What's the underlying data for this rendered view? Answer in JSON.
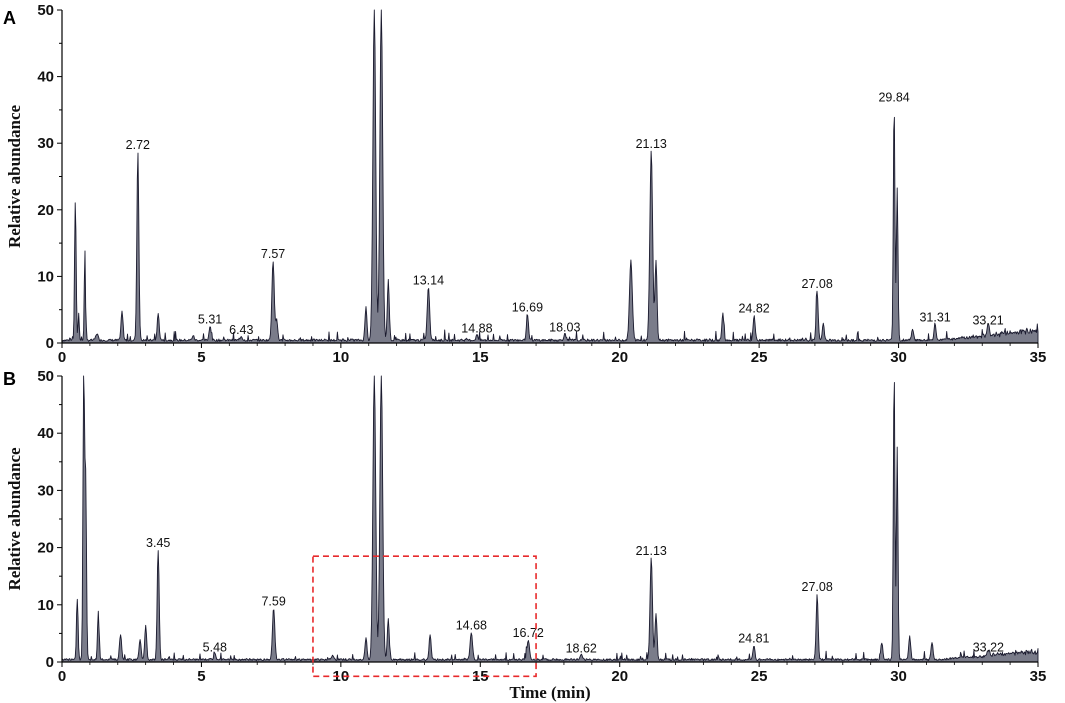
{
  "chart_data": [
    {
      "type": "line",
      "panel_label": "A",
      "ylabel": "Relative abundance",
      "xlabel": "",
      "xlim": [
        0,
        35
      ],
      "ylim": [
        0,
        50
      ],
      "x_ticks": [
        "0",
        "5",
        "10",
        "15",
        "20",
        "25",
        "30",
        "35"
      ],
      "y_ticks": [
        "0",
        "10",
        "20",
        "30",
        "40",
        "50"
      ],
      "series": [
        {
          "peaks": [
            {
              "x": 0.48,
              "y": 21.0,
              "w": 0.04
            },
            {
              "x": 0.6,
              "y": 4.0,
              "w": 0.03
            },
            {
              "x": 0.82,
              "y": 13.7,
              "w": 0.03
            },
            {
              "x": 1.25,
              "y": 1.0,
              "w": 0.06
            },
            {
              "x": 2.15,
              "y": 4.2,
              "w": 0.05
            },
            {
              "x": 2.72,
              "y": 28.4,
              "w": 0.05
            },
            {
              "x": 3.45,
              "y": 4.0,
              "w": 0.05
            },
            {
              "x": 4.7,
              "y": 0.7,
              "w": 0.05
            },
            {
              "x": 5.31,
              "y": 2.2,
              "w": 0.05
            },
            {
              "x": 6.43,
              "y": 0.6,
              "w": 0.05
            },
            {
              "x": 7.57,
              "y": 12.0,
              "w": 0.06
            },
            {
              "x": 7.7,
              "y": 3.0,
              "w": 0.05
            },
            {
              "x": 10.9,
              "y": 5.0,
              "w": 0.05
            },
            {
              "x": 11.2,
              "y": 50.0,
              "w": 0.07
            },
            {
              "x": 11.45,
              "y": 50.0,
              "w": 0.07
            },
            {
              "x": 11.7,
              "y": 9.0,
              "w": 0.05
            },
            {
              "x": 13.14,
              "y": 8.0,
              "w": 0.06
            },
            {
              "x": 14.88,
              "y": 0.8,
              "w": 0.05
            },
            {
              "x": 16.69,
              "y": 4.0,
              "w": 0.05
            },
            {
              "x": 18.03,
              "y": 1.0,
              "w": 0.05
            },
            {
              "x": 20.4,
              "y": 12.0,
              "w": 0.07
            },
            {
              "x": 21.13,
              "y": 28.5,
              "w": 0.07
            },
            {
              "x": 21.3,
              "y": 12.0,
              "w": 0.05
            },
            {
              "x": 23.7,
              "y": 4.0,
              "w": 0.05
            },
            {
              "x": 24.82,
              "y": 3.8,
              "w": 0.05
            },
            {
              "x": 27.08,
              "y": 7.5,
              "w": 0.05
            },
            {
              "x": 27.3,
              "y": 2.5,
              "w": 0.05
            },
            {
              "x": 29.84,
              "y": 35.5,
              "w": 0.04
            },
            {
              "x": 29.95,
              "y": 23.0,
              "w": 0.04
            },
            {
              "x": 30.5,
              "y": 1.8,
              "w": 0.05
            },
            {
              "x": 31.31,
              "y": 2.5,
              "w": 0.05
            },
            {
              "x": 33.21,
              "y": 2.0,
              "w": 0.05
            }
          ]
        }
      ],
      "peak_labels": [
        {
          "text": "2.72",
          "x": 2.72,
          "y": 28.4
        },
        {
          "text": "5.31",
          "x": 5.31,
          "y": 2.2
        },
        {
          "text": "6.43",
          "x": 6.43,
          "y": 0.6
        },
        {
          "text": "7.57",
          "x": 7.57,
          "y": 12.0
        },
        {
          "text": "13.14",
          "x": 13.14,
          "y": 8.0
        },
        {
          "text": "14.88",
          "x": 14.88,
          "y": 0.8
        },
        {
          "text": "16.69",
          "x": 16.69,
          "y": 4.0
        },
        {
          "text": "18.03",
          "x": 18.03,
          "y": 1.0
        },
        {
          "text": "21.13",
          "x": 21.13,
          "y": 28.5
        },
        {
          "text": "24.82",
          "x": 24.82,
          "y": 3.8
        },
        {
          "text": "27.08",
          "x": 27.08,
          "y": 7.5
        },
        {
          "text": "29.84",
          "x": 29.84,
          "y": 35.5
        },
        {
          "text": "31.31",
          "x": 31.31,
          "y": 2.5
        },
        {
          "text": "33.21",
          "x": 33.21,
          "y": 2.0
        }
      ],
      "grid": false
    },
    {
      "type": "line",
      "panel_label": "B",
      "ylabel": "Relative abundance",
      "xlabel": "Time (min)",
      "xlim": [
        0,
        35
      ],
      "ylim": [
        0,
        50
      ],
      "x_ticks": [
        "0",
        "5",
        "10",
        "15",
        "20",
        "25",
        "30",
        "35"
      ],
      "y_ticks": [
        "0",
        "10",
        "20",
        "30",
        "40",
        "50"
      ],
      "series": [
        {
          "peaks": [
            {
              "x": 0.55,
              "y": 10.7,
              "w": 0.04
            },
            {
              "x": 0.78,
              "y": 50.0,
              "w": 0.04
            },
            {
              "x": 0.85,
              "y": 31.0,
              "w": 0.04
            },
            {
              "x": 1.3,
              "y": 8.5,
              "w": 0.04
            },
            {
              "x": 2.1,
              "y": 4.5,
              "w": 0.05
            },
            {
              "x": 2.8,
              "y": 3.5,
              "w": 0.05
            },
            {
              "x": 3.0,
              "y": 6.0,
              "w": 0.05
            },
            {
              "x": 3.45,
              "y": 19.2,
              "w": 0.05
            },
            {
              "x": 5.48,
              "y": 1.0,
              "w": 0.05
            },
            {
              "x": 7.59,
              "y": 9.0,
              "w": 0.06
            },
            {
              "x": 9.7,
              "y": 0.8,
              "w": 0.05
            },
            {
              "x": 10.9,
              "y": 4.0,
              "w": 0.05
            },
            {
              "x": 11.2,
              "y": 50.0,
              "w": 0.07
            },
            {
              "x": 11.45,
              "y": 50.0,
              "w": 0.07
            },
            {
              "x": 11.7,
              "y": 7.0,
              "w": 0.05
            },
            {
              "x": 13.2,
              "y": 4.5,
              "w": 0.05
            },
            {
              "x": 14.68,
              "y": 4.8,
              "w": 0.06
            },
            {
              "x": 16.72,
              "y": 3.5,
              "w": 0.06
            },
            {
              "x": 18.62,
              "y": 0.8,
              "w": 0.05
            },
            {
              "x": 21.13,
              "y": 17.8,
              "w": 0.06
            },
            {
              "x": 21.3,
              "y": 8.0,
              "w": 0.05
            },
            {
              "x": 24.81,
              "y": 2.5,
              "w": 0.05
            },
            {
              "x": 27.08,
              "y": 11.5,
              "w": 0.05
            },
            {
              "x": 29.4,
              "y": 3.0,
              "w": 0.05
            },
            {
              "x": 29.84,
              "y": 50.0,
              "w": 0.04
            },
            {
              "x": 29.95,
              "y": 37.0,
              "w": 0.04
            },
            {
              "x": 30.4,
              "y": 4.0,
              "w": 0.05
            },
            {
              "x": 31.2,
              "y": 3.0,
              "w": 0.05
            },
            {
              "x": 33.22,
              "y": 1.0,
              "w": 0.05
            }
          ]
        }
      ],
      "peak_labels": [
        {
          "text": "3.45",
          "x": 3.45,
          "y": 19.2
        },
        {
          "text": "5.48",
          "x": 5.48,
          "y": 1.0
        },
        {
          "text": "7.59",
          "x": 7.59,
          "y": 9.0
        },
        {
          "text": "14.68",
          "x": 14.68,
          "y": 4.8
        },
        {
          "text": "16.72",
          "x": 16.72,
          "y": 3.5
        },
        {
          "text": "18.62",
          "x": 18.62,
          "y": 0.8
        },
        {
          "text": "21.13",
          "x": 21.13,
          "y": 17.8
        },
        {
          "text": "24.81",
          "x": 24.81,
          "y": 2.5
        },
        {
          "text": "27.08",
          "x": 27.08,
          "y": 11.5
        },
        {
          "text": "33.22",
          "x": 33.22,
          "y": 1.0
        }
      ],
      "highlight_box": {
        "x_range": [
          9.0,
          17.0
        ],
        "y_range": [
          -2.5,
          18.5
        ],
        "color": "#e8292b",
        "style": "dashed"
      },
      "grid": false
    }
  ],
  "colors": {
    "trace_stroke": "#1a1a2e",
    "trace_fill": "#7a7c8a",
    "axis": "#000000",
    "highlight": "#e8292b"
  }
}
